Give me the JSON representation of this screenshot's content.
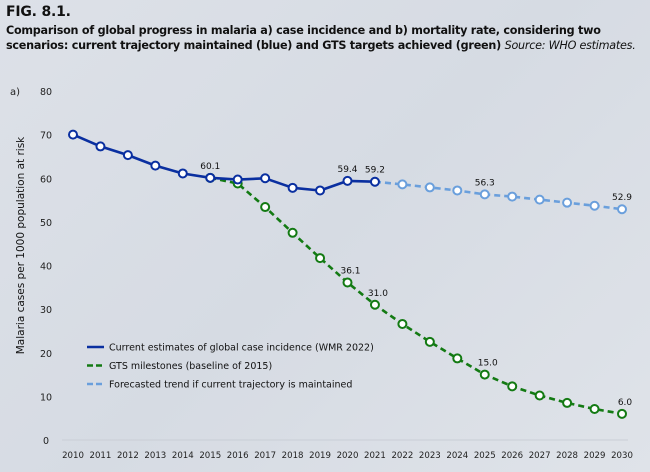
{
  "figure": {
    "label": "FIG. 8.1.",
    "caption": "Comparison of global progress in malaria a) case incidence and b) mortality rate, considering two scenarios: current trajectory maintained (blue) and GTS targets achieved (green)",
    "source": "Source: WHO estimates.",
    "panel_label": "a)"
  },
  "colors": {
    "current": "#0a2fa0",
    "gts": "#137a13",
    "forecast": "#6a9fdc",
    "axis_text": "#222222",
    "gridline": "#c9ced6"
  },
  "chart_data": {
    "type": "line",
    "title": "Comparison of global progress in malaria case incidence",
    "xlabel": "",
    "ylabel": "Malaria cases per 1000 population at risk",
    "ylim": [
      0,
      80
    ],
    "yticks": [
      0,
      10,
      20,
      30,
      40,
      50,
      60,
      70,
      80
    ],
    "x": [
      2010,
      2011,
      2012,
      2013,
      2014,
      2015,
      2016,
      2017,
      2018,
      2019,
      2020,
      2021,
      2022,
      2023,
      2024,
      2025,
      2026,
      2027,
      2028,
      2029,
      2030
    ],
    "grid": false,
    "legend_position": "lower-left",
    "series": [
      {
        "name": "Current estimates of global case incidence (WMR 2022)",
        "style": "solid",
        "color_key": "current",
        "x": [
          2010,
          2011,
          2012,
          2013,
          2014,
          2015,
          2016,
          2017,
          2018,
          2019,
          2020,
          2021
        ],
        "values": [
          70.0,
          67.3,
          65.3,
          62.9,
          61.1,
          60.1,
          59.7,
          60.0,
          57.8,
          57.2,
          59.4,
          59.2
        ],
        "labels": {
          "2015": "60.1",
          "2020": "59.4",
          "2021": "59.2"
        }
      },
      {
        "name": "GTS milestones (baseline of 2015)",
        "style": "dashed",
        "color_key": "gts",
        "x": [
          2015,
          2016,
          2017,
          2018,
          2019,
          2020,
          2021,
          2022,
          2023,
          2024,
          2025,
          2026,
          2027,
          2028,
          2029,
          2030
        ],
        "values": [
          60.1,
          58.8,
          53.4,
          47.5,
          41.7,
          36.1,
          31.0,
          26.6,
          22.5,
          18.7,
          15.0,
          12.3,
          10.2,
          8.5,
          7.1,
          6.0
        ],
        "labels": {
          "2020": "36.1",
          "2021": "31.0",
          "2025": "15.0",
          "2030": "6.0"
        }
      },
      {
        "name": "Forecasted trend if current trajectory is maintained",
        "style": "dashed",
        "color_key": "forecast",
        "x": [
          2021,
          2022,
          2023,
          2024,
          2025,
          2026,
          2027,
          2028,
          2029,
          2030
        ],
        "values": [
          59.2,
          58.6,
          57.9,
          57.2,
          56.3,
          55.8,
          55.1,
          54.4,
          53.7,
          52.9
        ],
        "labels": {
          "2021": "",
          "2025": "56.3",
          "2030": "52.9"
        }
      }
    ]
  }
}
